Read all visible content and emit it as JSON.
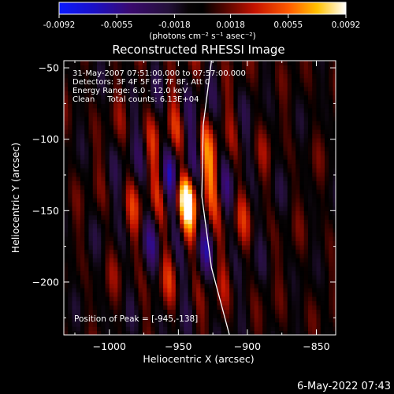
{
  "chart_data": {
    "type": "heatmap",
    "title": "Reconstructed RHESSI Image",
    "xlabel": "Heliocentric X (arcsec)",
    "ylabel": "Heliocentric Y (arcsec)",
    "xlim": [
      -1033,
      -836
    ],
    "ylim": [
      -237,
      -45
    ],
    "x_ticks": [
      -1000,
      -950,
      -900,
      -850
    ],
    "x_tick_labels": [
      "−1000",
      "−950",
      "−900",
      "−850"
    ],
    "y_ticks": [
      -50,
      -100,
      -150,
      -200
    ],
    "y_tick_labels": [
      "−50",
      "−100",
      "−150",
      "−200"
    ],
    "colorbar": {
      "min": -0.0092,
      "max": 0.0092,
      "ticks": [
        -0.0092,
        -0.0055,
        -0.0018,
        0.0018,
        0.0055,
        0.0092
      ],
      "tick_labels": [
        "-0.0092",
        "-0.0055",
        "-0.0018",
        "0.0018",
        "0.0055",
        "0.0092"
      ],
      "unit_label": "(photons cm⁻² s⁻¹ asec⁻²)"
    },
    "peak": {
      "x": -945,
      "y": -138
    },
    "annotations": [
      "31-May-2007 07:51:00.000 to 07:57:00.000",
      "Detectors: 3F 4F 5F 6F 7F 8F, Att 0",
      "Energy Range: 6.0 - 12.0 keV",
      "Clean     Total counts: 6.13E+04"
    ],
    "peak_label": "Position of Peak = [-945,-138]",
    "limb_curve": [
      [
        -926,
        -45
      ],
      [
        -932,
        -90
      ],
      [
        -933,
        -140
      ],
      [
        -926,
        -190
      ],
      [
        -913,
        -237
      ]
    ]
  },
  "footer": "6-May-2022 07:43"
}
